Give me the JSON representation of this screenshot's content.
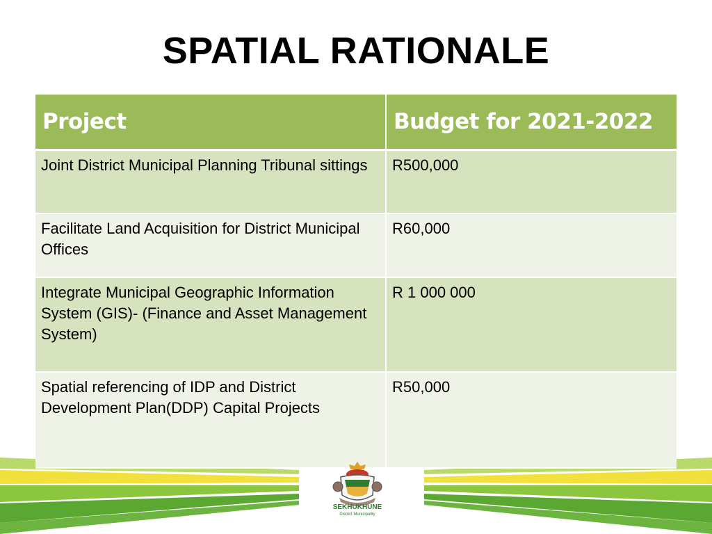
{
  "slide": {
    "title": "SPATIAL RATIONALE"
  },
  "table": {
    "headers": [
      "Project",
      "Budget for 2021-2022"
    ],
    "rows": [
      {
        "project": "Joint District Municipal Planning Tribunal sittings",
        "budget": "R500,000"
      },
      {
        "project": "Facilitate Land Acquisition for District Municipal Offices",
        "budget": "R60,000"
      },
      {
        "project": "Integrate Municipal Geographic Information System (GIS)- (Finance and Asset Management System)",
        "budget": "R 1 000 000"
      },
      {
        "project": "Spatial referencing of IDP and District Development Plan(DDP) Capital Projects",
        "budget": "R50,000"
      }
    ]
  },
  "logo": {
    "name": "SEKHUKHUNE",
    "subtitle": "District Municipality"
  },
  "colors": {
    "header_bg": "#9bbb59",
    "row_odd": "#d7e3bf",
    "row_even": "#eef2e7",
    "stripe_green": "#6db33f",
    "stripe_yellow": "#f2e13a"
  }
}
